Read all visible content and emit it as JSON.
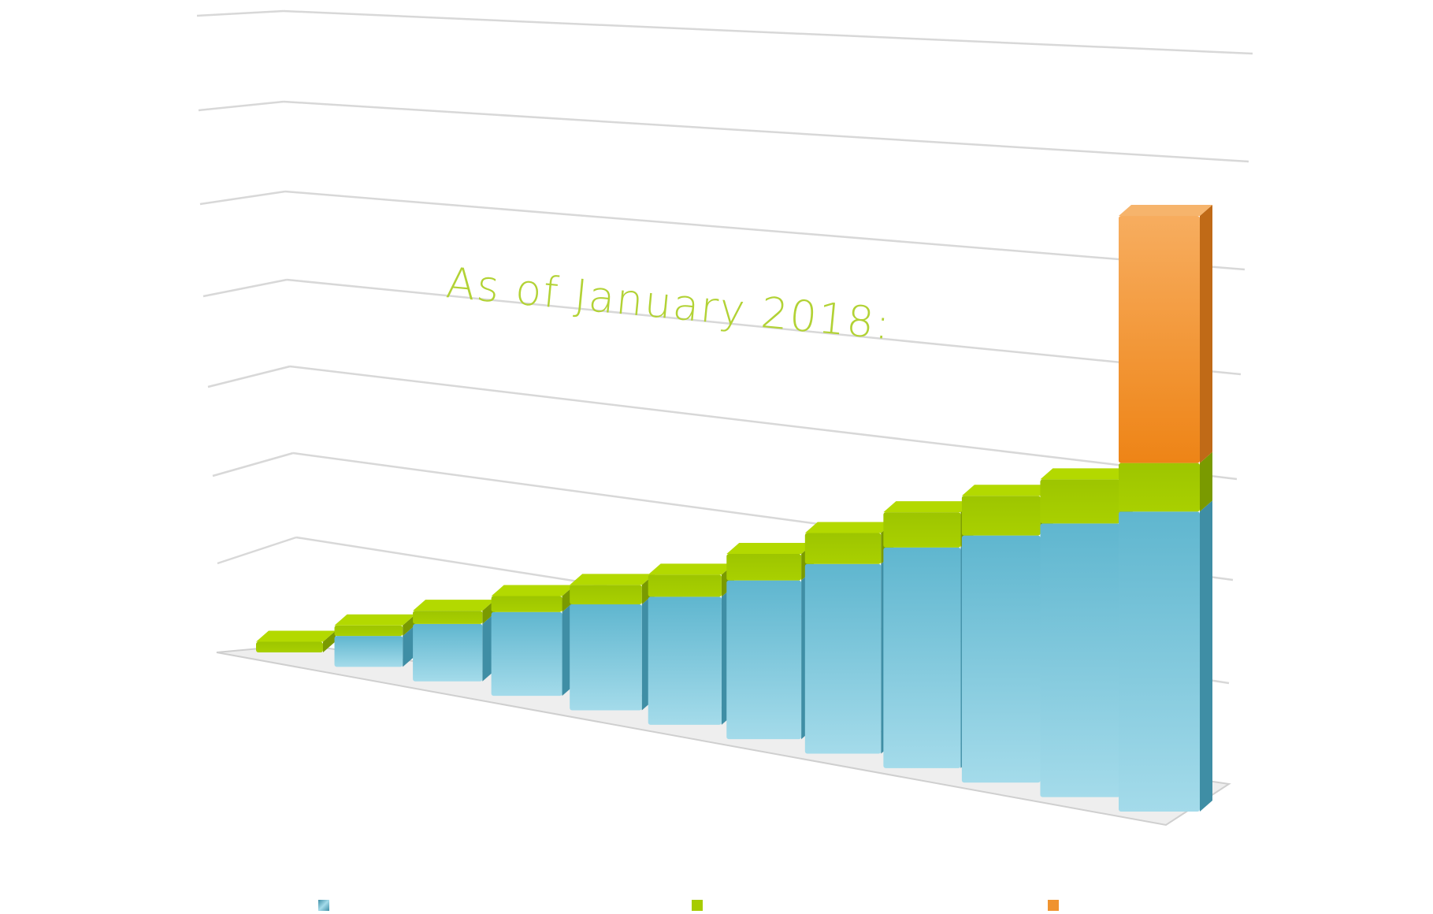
{
  "chart_data": {
    "type": "bar",
    "stacked": true,
    "three_d": true,
    "title": "As of January 2018:",
    "categories": [
      "",
      "",
      "",
      "",
      "",
      "",
      "",
      "",
      "",
      "",
      "",
      ""
    ],
    "series": [
      {
        "values": [
          0,
          3.5,
          6.5,
          9.5,
          12,
          14.5,
          18,
          21.5,
          25,
          28,
          31,
          34
        ]
      },
      {
        "values": [
          1.2,
          1.2,
          1.5,
          1.8,
          2.2,
          2.5,
          3.0,
          3.5,
          4.0,
          4.5,
          5.0,
          5.5
        ]
      },
      {
        "values": [
          0,
          0,
          0,
          0,
          0,
          0,
          0,
          0,
          0,
          0,
          0,
          28
        ]
      }
    ],
    "grid": true,
    "legend": "bottom",
    "colors": {
      "series1_front": "#6fc0d8",
      "series1_side": "#3f8ea5",
      "series2_front": "#a6cc00",
      "series2_side": "#7a9a00",
      "series2_top": "#b3d900",
      "series3_front": "#f0932f",
      "series3_side": "#c06a17",
      "series3_top": "#f6b46c",
      "title": "#b2d235",
      "grid": "#d8d8d8",
      "floor": "#eeeeee"
    }
  }
}
